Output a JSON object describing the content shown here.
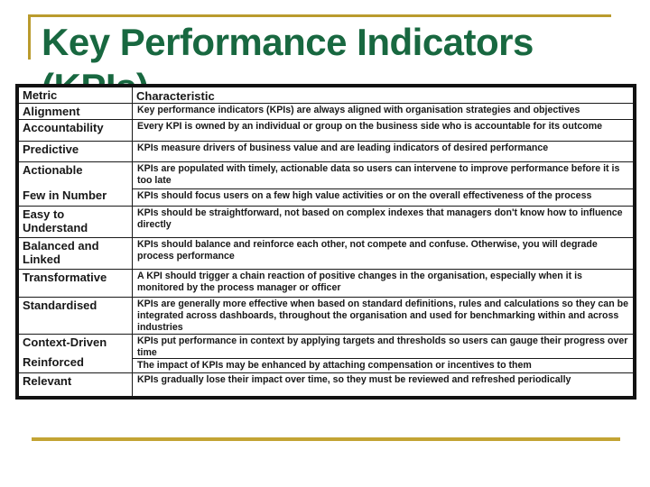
{
  "slide": {
    "title_line1": "Key Performance Indicators",
    "title_line2": "(KPIs)",
    "colors": {
      "title_green": "#186840",
      "accent_gold": "#BA9B2D",
      "bottom_rule_gold": "#C3A434",
      "table_border": "#121212"
    }
  },
  "table": {
    "header": {
      "metric": "Metric",
      "characteristic": "Characteristic"
    },
    "rows": [
      {
        "metric": "Alignment",
        "characteristic": "Key performance indicators (KPIs) are always aligned with organisation strategies and objectives"
      },
      {
        "metric": "Accountability",
        "characteristic": "Every KPI is owned by an individual or group on the business side who is accountable for its outcome"
      },
      {
        "metric": "Predictive",
        "characteristic": "KPIs measure drivers of business value and are leading indicators of desired performance"
      },
      {
        "metric": "Actionable",
        "characteristic": "KPIs are populated with timely, actionable data so users can intervene to improve performance before it is too late"
      },
      {
        "metric": "Few in Number",
        "characteristic": "KPIs should focus users on a few high value activities or on the overall effectiveness of the process"
      },
      {
        "metric": "Easy to Understand",
        "characteristic": "KPIs should be straightforward, not based on complex indexes that managers don't know how to influence directly"
      },
      {
        "metric": "Balanced and Linked",
        "characteristic": "KPIs should balance and reinforce each other, not compete and confuse. Otherwise, you will degrade process performance"
      },
      {
        "metric": "Transformative",
        "characteristic": "A KPI should trigger a chain reaction of positive changes in the organisation, especially when it is monitored by the process manager or officer"
      },
      {
        "metric": "Standardised",
        "characteristic": "KPIs are generally more effective when based on standard definitions, rules and calculations so they can be integrated across dashboards, throughout the organisation and used for benchmarking within and across industries"
      },
      {
        "metric": "Context-Driven",
        "characteristic": "KPIs put performance in context by applying targets and thresholds so users can gauge their progress over time"
      },
      {
        "metric": "Reinforced",
        "characteristic": "The impact of KPIs may be enhanced by attaching compensation or incentives to them"
      },
      {
        "metric": "Relevant",
        "characteristic": "KPIs gradually lose their impact over time, so they must be reviewed and refreshed periodically"
      }
    ]
  }
}
